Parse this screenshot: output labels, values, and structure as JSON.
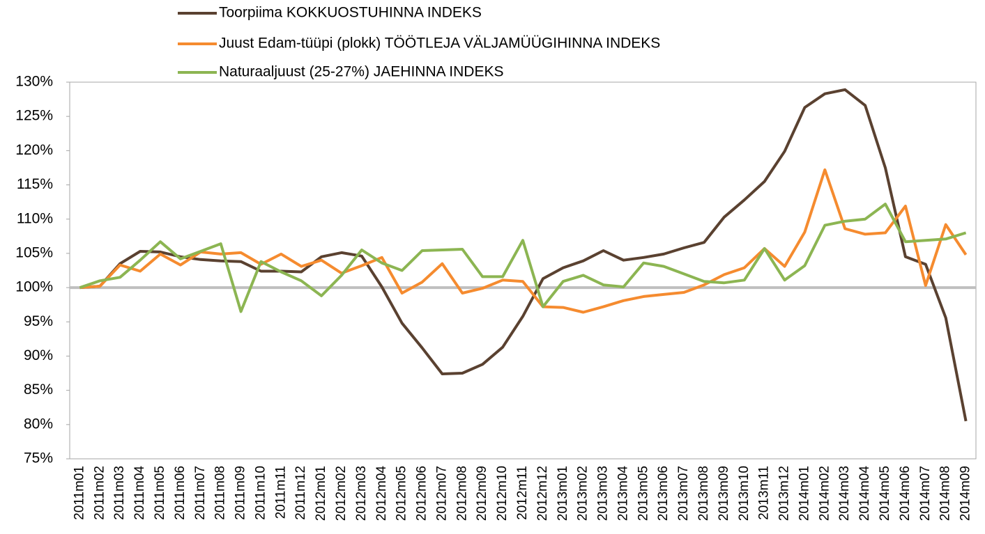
{
  "chart_data": {
    "type": "line",
    "categories": [
      "2011m01",
      "2011m02",
      "2011m03",
      "2011m04",
      "2011m05",
      "2011m06",
      "2011m07",
      "2011m08",
      "2011m09",
      "2011m10",
      "2011m11",
      "2011m12",
      "2012m01",
      "2012m02",
      "2012m03",
      "2012m04",
      "2012m05",
      "2012m06",
      "2012m07",
      "2012m08",
      "2012m09",
      "2012m10",
      "2012m11",
      "2012m12",
      "2013m01",
      "2013m02",
      "2013m03",
      "2013m04",
      "2013m05",
      "2013m06",
      "2013m07",
      "2013m08",
      "2013m09",
      "2013m10",
      "2013m11",
      "2013m12",
      "2014m01",
      "2014m02",
      "2014m03",
      "2014m04",
      "2014m05",
      "2014m06",
      "2014m07",
      "2014m08",
      "2014m09"
    ],
    "series": [
      {
        "name": "Toorpiima KOKKUOSTUHINNA INDEKS",
        "color": "#5a4130",
        "values": [
          100,
          100.2,
          103.5,
          105.3,
          105.2,
          104.5,
          104.1,
          103.9,
          103.8,
          102.4,
          102.4,
          102.3,
          104.5,
          105.1,
          104.6,
          100.1,
          94.8,
          91.2,
          87.4,
          87.5,
          88.8,
          91.3,
          95.8,
          101.3,
          102.9,
          103.9,
          105.4,
          104.0,
          104.4,
          104.9,
          105.8,
          106.6,
          110.3,
          112.8,
          115.5,
          119.9,
          126.3,
          128.3,
          128.9,
          126.6,
          117.5,
          104.5,
          103.4,
          95.6,
          80.5
        ]
      },
      {
        "name": "Juust Edam-tüüpi (plokk) TÖÖTLEJA VÄLJAMÜÜGIHINNA INDEKS",
        "color": "#f58b2f",
        "values": [
          100,
          100.2,
          103.3,
          102.4,
          104.9,
          103.3,
          105.2,
          104.9,
          105.1,
          103.4,
          104.9,
          103.1,
          104.0,
          102.1,
          103.2,
          104.4,
          99.2,
          100.8,
          103.5,
          99.2,
          99.9,
          101.1,
          100.9,
          97.2,
          97.1,
          96.4,
          97.2,
          98.1,
          98.7,
          99.0,
          99.3,
          100.4,
          101.9,
          102.9,
          105.7,
          103.1,
          108.1,
          117.2,
          108.6,
          107.8,
          108.0,
          111.9,
          100.3,
          109.2,
          104.8
        ]
      },
      {
        "name": "Naturaaljuust (25-27%) JAEHINNA INDEKS",
        "color": "#8cb552",
        "values": [
          100,
          101.0,
          101.5,
          104.0,
          106.7,
          104.2,
          105.3,
          106.4,
          96.5,
          103.8,
          102.3,
          101.0,
          98.8,
          101.8,
          105.5,
          103.6,
          102.5,
          105.4,
          105.5,
          105.6,
          101.6,
          101.6,
          106.9,
          97.2,
          100.9,
          101.8,
          100.4,
          100.1,
          103.6,
          103.1,
          102.0,
          100.9,
          100.7,
          101.1,
          105.7,
          101.1,
          103.2,
          109.1,
          109.7,
          110.0,
          112.2,
          106.7,
          106.9,
          107.1,
          108.0
        ]
      }
    ],
    "ylim": [
      75,
      130
    ],
    "yticks": [
      {
        "value": 75,
        "label": "75%"
      },
      {
        "value": 80,
        "label": "80%"
      },
      {
        "value": 85,
        "label": "85%"
      },
      {
        "value": 90,
        "label": "90%"
      },
      {
        "value": 95,
        "label": "95%"
      },
      {
        "value": 100,
        "label": "100%"
      },
      {
        "value": 105,
        "label": "105%"
      },
      {
        "value": 110,
        "label": "110%"
      },
      {
        "value": 115,
        "label": "115%"
      },
      {
        "value": 120,
        "label": "120%"
      },
      {
        "value": 125,
        "label": "125%"
      },
      {
        "value": 130,
        "label": "130%"
      }
    ],
    "reference_line": 100,
    "grid": false,
    "legend": "top"
  }
}
